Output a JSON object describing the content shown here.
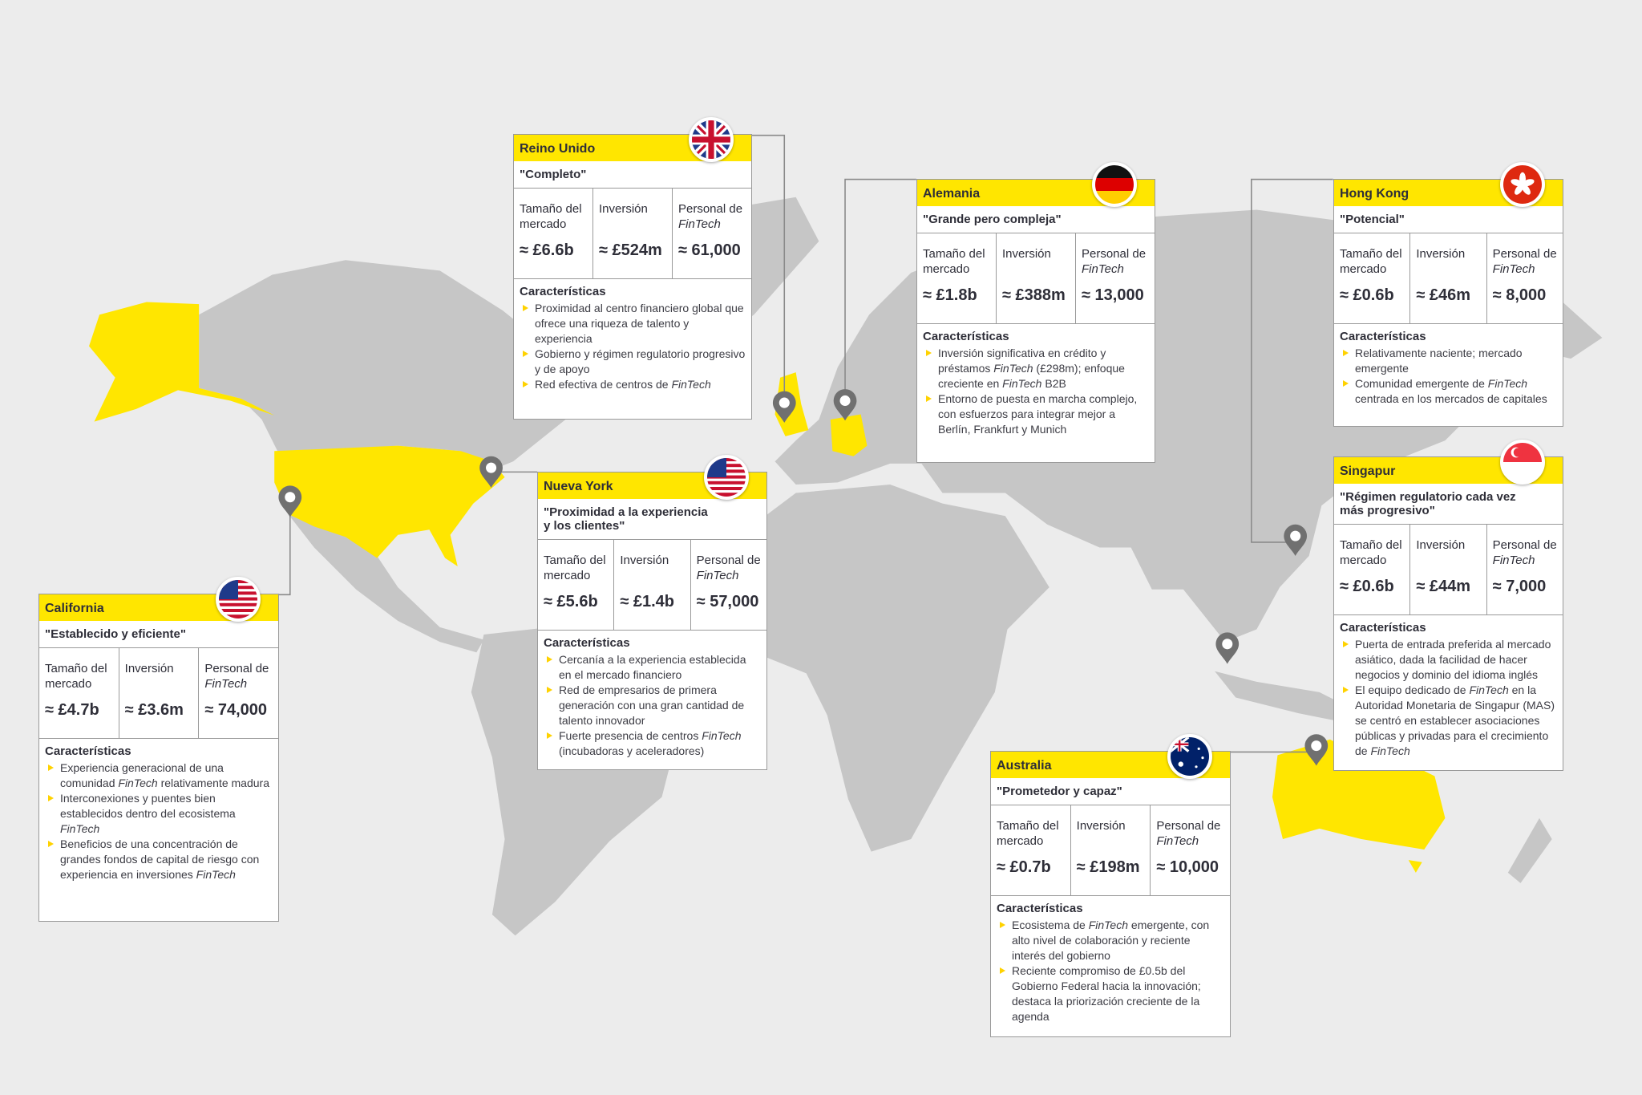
{
  "colors": {
    "accent": "#FFE600",
    "land": "#c6c6c6",
    "background": "#ececec",
    "pin": "#707070",
    "highlight_land": "#FFE600"
  },
  "metric_labels": {
    "size": "Tamaño del mercado",
    "investment": "Inversión",
    "staff": "Personal de FinTech"
  },
  "features_heading": "Características",
  "cards": [
    {
      "key": "uk",
      "title": "Reino Unido",
      "flag": "uk-flag-icon",
      "tagline": "\"Completo\"",
      "values": [
        "≈ £6.6b",
        "≈ £524m",
        "≈ 61,000"
      ],
      "features": [
        "Proximidad al centro financiero global que ofrece una riqueza de talento y experiencia",
        "Gobierno y régimen regulatorio progresivo y de apoyo",
        "Red efectiva de centros de FinTech"
      ]
    },
    {
      "key": "germany",
      "title": "Alemania",
      "flag": "germany-flag-icon",
      "tagline": "\"Grande pero compleja\"",
      "values": [
        "≈ £1.8b",
        "≈ £388m",
        "≈ 13,000"
      ],
      "features": [
        "Inversión significativa en crédito y préstamos FinTech (£298m); enfoque creciente en FinTech B2B",
        "Entorno de puesta en marcha complejo, con esfuerzos para integrar mejor a Berlín, Frankfurt y Munich"
      ]
    },
    {
      "key": "hongkong",
      "title": "Hong Kong",
      "flag": "hong-kong-flag-icon",
      "tagline": "\"Potencial\"",
      "values": [
        "≈ £0.6b",
        "≈ £46m",
        "≈ 8,000"
      ],
      "features": [
        "Relativamente naciente; mercado emergente",
        "Comunidad emergente de FinTech centrada en los mercados de capitales"
      ]
    },
    {
      "key": "singapore",
      "title": "Singapur",
      "flag": "singapore-flag-icon",
      "tagline": "\"Régimen regulatorio cada vez\n  más progresivo\"",
      "values": [
        "≈ £0.6b",
        "≈ £44m",
        "≈ 7,000"
      ],
      "features": [
        "Puerta de entrada preferida al mercado asiático, dada la facilidad de hacer negocios y dominio del idioma inglés",
        "El equipo dedicado de FinTech en la Autoridad Monetaria de Singapur (MAS) se centró en establecer asociaciones públicas y privadas para el crecimiento de FinTech"
      ]
    },
    {
      "key": "newyork",
      "title": "Nueva York",
      "flag": "usa-flag-icon",
      "tagline": "\"Proximidad a la experiencia\n  y los clientes\"",
      "values": [
        "≈ £5.6b",
        "≈ £1.4b",
        "≈ 57,000"
      ],
      "features": [
        "Cercanía a la experiencia establecida en el mercado financiero",
        "Red de empresarios de primera generación con una gran cantidad de talento innovador",
        "Fuerte presencia de centros FinTech (incubadoras y aceleradores)"
      ]
    },
    {
      "key": "california",
      "title": "California",
      "flag": "usa-flag-icon",
      "tagline": "\"Establecido y eficiente\"",
      "values": [
        "≈ £4.7b",
        "≈ £3.6m",
        "≈ 74,000"
      ],
      "features": [
        "Experiencia generacional de una comunidad FinTech relativamente madura",
        "Interconexiones y puentes bien establecidos dentro del ecosistema FinTech",
        "Beneficios de una concentración de grandes fondos de capital de riesgo con experiencia en inversiones FinTech"
      ]
    },
    {
      "key": "australia",
      "title": "Australia",
      "flag": "australia-flag-icon",
      "tagline": "\"Prometedor y capaz\"",
      "values": [
        "≈ £0.7b",
        "≈ £198m",
        "≈ 10,000"
      ],
      "features": [
        "Ecosistema de FinTech emergente, con alto nivel de colaboración y reciente interés del gobierno",
        "Reciente compromiso de £0.5b del Gobierno Federal hacia la innovación; destaca la priorización creciente de la agenda"
      ]
    }
  ]
}
